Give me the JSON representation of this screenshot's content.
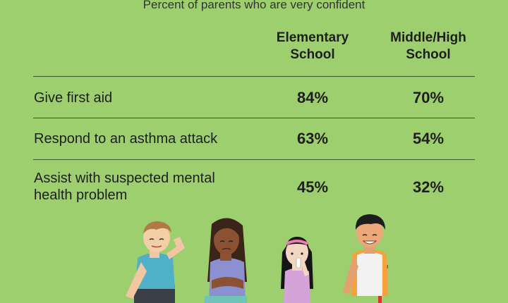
{
  "chart_data": {
    "type": "table",
    "subtitle": "Percent of parents who are very confident",
    "columns": [
      "Elementary School",
      "Middle/High School"
    ],
    "rows": [
      {
        "label": "Give first aid",
        "values": [
          "84%",
          "70%"
        ]
      },
      {
        "label": "Respond to an asthma attack",
        "values": [
          "63%",
          "54%"
        ]
      },
      {
        "label": "Assist with suspected mental health problem",
        "values": [
          "45%",
          "32%"
        ]
      }
    ]
  },
  "header": {
    "elementary_line1": "Elementary",
    "elementary_line2": "School",
    "middle_line1": "Middle/High",
    "middle_line2": "School"
  },
  "rows_display": {
    "row3_line1": "Assist with suspected mental",
    "row3_line2": "health problem"
  },
  "colors": {
    "background": "#9dcf6f",
    "rule": "#3b5a2b"
  }
}
